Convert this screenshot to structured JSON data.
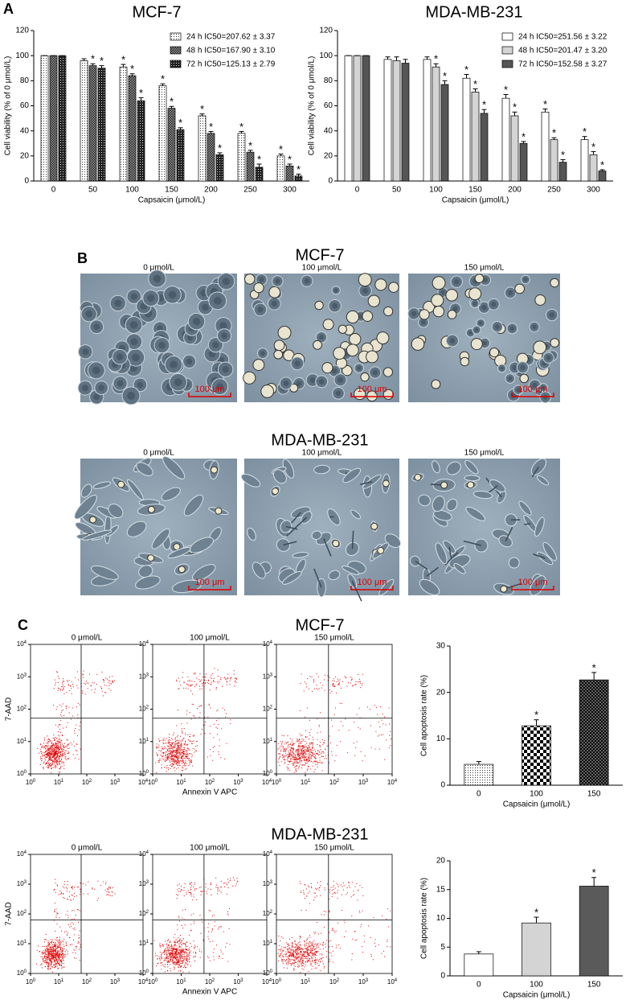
{
  "panel_labels": [
    "A",
    "B",
    "C"
  ],
  "chart_data": [
    {
      "type": "bar",
      "title": "MCF-7",
      "xlabel": "Capsaicin (μmol/L)",
      "ylabel": "Cell viability (% of 0 μmol/L)",
      "categories": [
        "0",
        "50",
        "100",
        "150",
        "200",
        "250",
        "300"
      ],
      "ylim": [
        0,
        120
      ],
      "yticks": [
        0,
        20,
        40,
        60,
        80,
        100,
        120
      ],
      "series": [
        {
          "name": "24 h IC50=207.62 ± 3.37",
          "fill": "dots",
          "values": [
            100,
            96,
            91,
            76,
            52,
            38,
            20
          ],
          "errors": [
            0,
            1.5,
            2,
            1.5,
            1.5,
            1.5,
            1.5
          ],
          "significance": [
            null,
            null,
            "*",
            "*",
            "*",
            "*",
            "*"
          ]
        },
        {
          "name": "48 h IC50=167.90 ± 3.10",
          "fill": "checker",
          "values": [
            100,
            92,
            84,
            58,
            38,
            23,
            12
          ],
          "errors": [
            0,
            1.5,
            1.5,
            1.5,
            1.5,
            1.5,
            1.5
          ],
          "significance": [
            null,
            "*",
            "*",
            "*",
            "*",
            "*",
            "*"
          ]
        },
        {
          "name": "72 h IC50=125.13 ± 2.79",
          "fill": "dense",
          "values": [
            100,
            90,
            64,
            41,
            21,
            11,
            4
          ],
          "errors": [
            0,
            2,
            2.5,
            1.5,
            1.5,
            2.5,
            1.5
          ],
          "significance": [
            null,
            "*",
            "*",
            "*",
            "*",
            "*",
            "*"
          ]
        }
      ]
    },
    {
      "type": "bar",
      "title": "MDA-MB-231",
      "xlabel": "Capsaicin (μmol/L)",
      "ylabel": "Cell viability (% of 0 μmol/L)",
      "categories": [
        "0",
        "50",
        "100",
        "150",
        "200",
        "250",
        "300"
      ],
      "ylim": [
        0,
        120
      ],
      "yticks": [
        0,
        20,
        40,
        60,
        80,
        100,
        120
      ],
      "series": [
        {
          "name": "24 h IC50=251.56 ± 3.22",
          "fill": "#ffffff",
          "values": [
            100,
            97,
            97,
            82,
            66,
            55,
            33
          ],
          "errors": [
            0,
            2,
            2,
            3,
            3,
            2.5,
            2.5
          ],
          "significance": [
            null,
            null,
            null,
            "*",
            "*",
            "*",
            "*"
          ]
        },
        {
          "name": "48 h IC50=201.47 ± 3.20",
          "fill": "#d4d4d4",
          "values": [
            100,
            96,
            91,
            71,
            52,
            33,
            21
          ],
          "errors": [
            0,
            3,
            2.5,
            2.5,
            3,
            1.5,
            2.5
          ],
          "significance": [
            null,
            null,
            "*",
            "*",
            "*",
            "*",
            "*"
          ]
        },
        {
          "name": "72 h IC50=152.58 ± 3.27",
          "fill": "#555555",
          "values": [
            100,
            94,
            77,
            54,
            30,
            15,
            8
          ],
          "errors": [
            0,
            3,
            3,
            3,
            1.5,
            2,
            1
          ],
          "significance": [
            null,
            null,
            "*",
            "*",
            "*",
            "*",
            "*"
          ]
        }
      ]
    },
    {
      "type": "bar",
      "xlabel": "Capsaicin (μmol/L)",
      "ylabel": "Cell apoptosis rate (%)",
      "categories": [
        "0",
        "100",
        "150"
      ],
      "ylim": [
        0,
        30
      ],
      "yticks": [
        0,
        10,
        20,
        30
      ],
      "values": [
        4.5,
        12.8,
        22.7
      ],
      "errors": [
        0.6,
        1.3,
        1.6
      ],
      "fills": [
        "dots",
        "chess",
        "darkchess"
      ],
      "significance": [
        null,
        "*",
        "*"
      ]
    },
    {
      "type": "bar",
      "xlabel": "Capsaicin (μmol/L)",
      "ylabel": "Cell apoptosis rate (%)",
      "categories": [
        "0",
        "100",
        "150"
      ],
      "ylim": [
        0,
        20
      ],
      "yticks": [
        0,
        5,
        10,
        15,
        20
      ],
      "values": [
        3.8,
        9.2,
        15.6
      ],
      "errors": [
        0.4,
        1.0,
        1.5
      ],
      "fills": [
        "#ffffff",
        "#d4d4d4",
        "#5a5a5a"
      ],
      "significance": [
        null,
        "*",
        "*"
      ]
    }
  ],
  "micrographs": [
    {
      "title": "MCF-7",
      "conditions": [
        "0 μmol/L",
        "100 μmol/L",
        "150 μmol/L"
      ],
      "scale_bar": "100 μm"
    },
    {
      "title": "MDA-MB-231",
      "conditions": [
        "0 μmol/L",
        "100 μmol/L",
        "150 μmol/L"
      ],
      "scale_bar": "100 μm"
    }
  ],
  "flow_cytometry": [
    {
      "title": "MCF-7",
      "conditions": [
        "0 μmol/L",
        "100 μmol/L",
        "150 μmol/L"
      ],
      "xlabel": "Annexin V APC",
      "ylabel": "7-AAD",
      "tick_base": "10",
      "tick_exponents": [
        0,
        1,
        2,
        3,
        4
      ]
    },
    {
      "title": "MDA-MB-231",
      "conditions": [
        "0 μmol/L",
        "100 μmol/L",
        "150 μmol/L"
      ],
      "xlabel": "Annexin V APC",
      "ylabel": "7-AAD",
      "tick_base": "10",
      "tick_exponents": [
        0,
        1,
        2,
        3,
        4
      ]
    }
  ]
}
